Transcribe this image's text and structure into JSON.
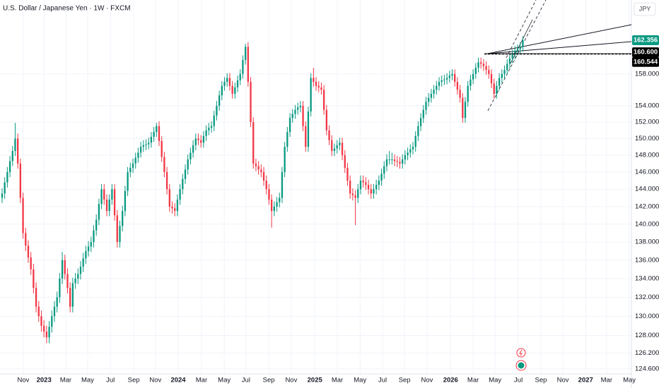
{
  "chart_data": {
    "type": "candlestick",
    "title": "U.S. Dollar / Japanese Yen · 1W · FXCM",
    "currency": "JPY",
    "up_color": "#089981",
    "down_color": "#f23645",
    "log_scale": true,
    "grid": true,
    "ylim": [
      124.1,
      167.7
    ],
    "yticks": [
      {
        "value": 124.6,
        "label": "124.600"
      },
      {
        "value": 126.2,
        "label": "126.200"
      },
      {
        "value": 128,
        "label": "128.000"
      },
      {
        "value": 130,
        "label": "130.000"
      },
      {
        "value": 132,
        "label": "132.000"
      },
      {
        "value": 134,
        "label": "134.000"
      },
      {
        "value": 136,
        "label": "136.000"
      },
      {
        "value": 138,
        "label": "138.000"
      },
      {
        "value": 140,
        "label": "140.000"
      },
      {
        "value": 142,
        "label": "142.000"
      },
      {
        "value": 144,
        "label": "144.000"
      },
      {
        "value": 146,
        "label": "146.000"
      },
      {
        "value": 148,
        "label": "148.000"
      },
      {
        "value": 150,
        "label": "150.000"
      },
      {
        "value": 152,
        "label": "152.000"
      },
      {
        "value": 154,
        "label": "154.000"
      },
      {
        "value": 158,
        "label": "158.000"
      }
    ],
    "xlim": [
      -0.8,
      240.5
    ],
    "xticks": [
      {
        "value": 8.1,
        "label": "Nov"
      },
      {
        "value": 16,
        "label": "2023"
      },
      {
        "value": 24.3,
        "label": "Mar"
      },
      {
        "value": 32.7,
        "label": "May"
      },
      {
        "value": 41.4,
        "label": "Jul"
      },
      {
        "value": 50.3,
        "label": "Sep"
      },
      {
        "value": 58.6,
        "label": "Nov"
      },
      {
        "value": 67.3,
        "label": "2024"
      },
      {
        "value": 76.2,
        "label": "Mar"
      },
      {
        "value": 84.9,
        "label": "May"
      },
      {
        "value": 93.2,
        "label": "Jul"
      },
      {
        "value": 101.9,
        "label": "Sep"
      },
      {
        "value": 110.5,
        "label": "Nov"
      },
      {
        "value": 119.5,
        "label": "2025"
      },
      {
        "value": 128.1,
        "label": "Mar"
      },
      {
        "value": 136.8,
        "label": "May"
      },
      {
        "value": 145.4,
        "label": "Jul"
      },
      {
        "value": 153.8,
        "label": "Sep"
      },
      {
        "value": 162.4,
        "label": "Nov"
      },
      {
        "value": 171.4,
        "label": "2026"
      },
      {
        "value": 180,
        "label": "Mar"
      },
      {
        "value": 188.4,
        "label": "May"
      },
      {
        "value": 197.3,
        "label": "Jul"
      },
      {
        "value": 205.9,
        "label": "Sep"
      },
      {
        "value": 214.3,
        "label": "Nov"
      },
      {
        "value": 223,
        "label": "2027"
      },
      {
        "value": 231,
        "label": "Mar"
      },
      {
        "value": 239.7,
        "label": "May"
      }
    ],
    "price_labels": [
      {
        "value": 162.356,
        "label": "162.356",
        "color": "#089981"
      },
      {
        "value": 160.6,
        "label": "160.600",
        "color": "#000000"
      },
      {
        "value": 160.544,
        "label": "160.544",
        "color": "#000000"
      }
    ],
    "ohlc": [
      [
        143.0,
        144.1,
        142.4,
        143.5
      ],
      [
        143.5,
        145.4,
        142.9,
        144.8
      ],
      [
        144.8,
        146.6,
        144.2,
        146.0
      ],
      [
        146.0,
        147.9,
        145.4,
        147.3
      ],
      [
        147.3,
        149.1,
        146.7,
        148.5
      ],
      [
        148.5,
        151.9,
        147.9,
        150.0
      ],
      [
        150.0,
        150.6,
        146.4,
        147.0
      ],
      [
        147.0,
        147.6,
        142.4,
        143.0
      ],
      [
        143.0,
        143.6,
        138.4,
        139.0
      ],
      [
        139.0,
        139.6,
        137.0,
        137.6
      ],
      [
        137.6,
        138.2,
        135.7,
        136.3
      ],
      [
        136.3,
        136.9,
        134.4,
        135.0
      ],
      [
        135.0,
        135.6,
        132.4,
        133.0
      ],
      [
        133.0,
        133.6,
        130.4,
        131.0
      ],
      [
        131.0,
        131.6,
        129.4,
        130.0
      ],
      [
        130.0,
        130.6,
        128.4,
        129.0
      ],
      [
        129.0,
        129.6,
        127.8,
        128.4
      ],
      [
        128.4,
        129.0,
        127.2,
        127.8
      ],
      [
        127.8,
        129.5,
        127.2,
        128.9
      ],
      [
        128.9,
        130.6,
        128.3,
        130.0
      ],
      [
        130.0,
        131.6,
        129.4,
        131.0
      ],
      [
        131.0,
        132.6,
        130.4,
        132.0
      ],
      [
        132.0,
        134.6,
        131.4,
        134.0
      ],
      [
        134.0,
        136.9,
        133.4,
        136.0
      ],
      [
        136.0,
        136.6,
        133.9,
        134.5
      ],
      [
        134.5,
        135.1,
        132.4,
        133.0
      ],
      [
        133.0,
        133.6,
        130.4,
        131.0
      ],
      [
        131.0,
        134.1,
        130.4,
        133.5
      ],
      [
        133.5,
        134.6,
        132.9,
        134.0
      ],
      [
        134.0,
        135.1,
        133.4,
        134.5
      ],
      [
        134.5,
        135.9,
        133.9,
        135.3
      ],
      [
        135.3,
        136.8,
        134.7,
        136.2
      ],
      [
        136.2,
        137.6,
        135.6,
        137.0
      ],
      [
        137.0,
        138.1,
        136.4,
        137.5
      ],
      [
        137.5,
        138.6,
        136.9,
        138.0
      ],
      [
        138.0,
        139.9,
        137.4,
        139.3
      ],
      [
        139.3,
        141.1,
        138.7,
        140.5
      ],
      [
        140.5,
        142.9,
        139.9,
        142.3
      ],
      [
        142.3,
        144.6,
        141.7,
        144.0
      ],
      [
        144.0,
        144.6,
        142.2,
        142.8
      ],
      [
        142.8,
        143.4,
        140.9,
        141.5
      ],
      [
        141.5,
        143.4,
        140.9,
        142.8
      ],
      [
        142.8,
        144.6,
        142.2,
        144.0
      ],
      [
        144.0,
        144.6,
        140.4,
        141.0
      ],
      [
        141.0,
        141.6,
        137.4,
        138.0
      ],
      [
        138.0,
        140.4,
        137.4,
        139.8
      ],
      [
        139.8,
        142.1,
        139.2,
        141.5
      ],
      [
        141.5,
        144.4,
        140.9,
        143.8
      ],
      [
        143.8,
        146.6,
        143.2,
        146.0
      ],
      [
        146.0,
        147.1,
        145.4,
        146.5
      ],
      [
        146.5,
        147.6,
        145.9,
        147.0
      ],
      [
        147.0,
        148.3,
        146.4,
        147.7
      ],
      [
        147.7,
        148.9,
        147.1,
        148.3
      ],
      [
        148.3,
        149.6,
        147.7,
        149.0
      ],
      [
        149.0,
        149.8,
        148.4,
        149.2
      ],
      [
        149.2,
        149.9,
        148.6,
        149.3
      ],
      [
        149.3,
        150.1,
        148.7,
        149.5
      ],
      [
        149.5,
        150.8,
        148.9,
        150.2
      ],
      [
        150.2,
        151.4,
        149.6,
        150.8
      ],
      [
        150.8,
        151.9,
        150.2,
        151.5
      ],
      [
        151.5,
        152.1,
        149.1,
        149.7
      ],
      [
        149.7,
        150.3,
        147.2,
        147.8
      ],
      [
        147.8,
        148.4,
        145.4,
        146.0
      ],
      [
        146.0,
        146.6,
        143.4,
        144.0
      ],
      [
        144.0,
        144.6,
        141.4,
        142.0
      ],
      [
        142.0,
        142.6,
        141.2,
        141.8
      ],
      [
        141.8,
        142.4,
        140.9,
        141.5
      ],
      [
        141.5,
        143.4,
        140.9,
        142.8
      ],
      [
        142.8,
        144.6,
        142.2,
        144.0
      ],
      [
        144.0,
        145.8,
        143.4,
        145.2
      ],
      [
        145.2,
        146.9,
        144.6,
        146.3
      ],
      [
        146.3,
        148.1,
        145.7,
        147.5
      ],
      [
        147.5,
        148.9,
        146.9,
        148.3
      ],
      [
        148.3,
        149.8,
        147.7,
        149.2
      ],
      [
        149.2,
        150.6,
        148.6,
        150.0
      ],
      [
        150.0,
        150.6,
        149.2,
        149.8
      ],
      [
        149.8,
        150.4,
        148.9,
        149.5
      ],
      [
        149.5,
        150.9,
        148.9,
        150.3
      ],
      [
        150.3,
        151.6,
        149.7,
        151.0
      ],
      [
        151.0,
        151.9,
        150.4,
        151.3
      ],
      [
        151.3,
        152.1,
        150.7,
        151.5
      ],
      [
        151.5,
        153.4,
        150.9,
        152.8
      ],
      [
        152.8,
        154.6,
        152.2,
        154.0
      ],
      [
        154.0,
        155.9,
        153.4,
        155.3
      ],
      [
        155.3,
        157.1,
        154.7,
        156.5
      ],
      [
        156.5,
        157.6,
        155.9,
        157.0
      ],
      [
        157.0,
        158.1,
        156.4,
        157.5
      ],
      [
        157.5,
        158.1,
        155.9,
        156.5
      ],
      [
        156.5,
        157.1,
        154.9,
        155.5
      ],
      [
        155.5,
        156.9,
        154.9,
        156.3
      ],
      [
        156.3,
        157.8,
        155.7,
        157.2
      ],
      [
        157.2,
        158.6,
        156.6,
        158.0
      ],
      [
        158.0,
        160.4,
        157.4,
        159.8
      ],
      [
        159.8,
        161.9,
        159.2,
        161.5
      ],
      [
        161.5,
        162.1,
        156.4,
        157.0
      ],
      [
        157.0,
        157.6,
        151.4,
        152.0
      ],
      [
        152.0,
        152.6,
        146.4,
        147.0
      ],
      [
        147.0,
        147.6,
        146.1,
        146.7
      ],
      [
        146.7,
        147.3,
        145.7,
        146.3
      ],
      [
        146.3,
        146.9,
        145.4,
        146.0
      ],
      [
        146.0,
        146.6,
        144.4,
        145.0
      ],
      [
        145.0,
        145.6,
        143.4,
        144.0
      ],
      [
        144.0,
        144.6,
        142.2,
        142.8
      ],
      [
        142.8,
        143.4,
        139.6,
        141.5
      ],
      [
        141.5,
        142.6,
        140.9,
        142.0
      ],
      [
        142.0,
        143.1,
        141.4,
        142.5
      ],
      [
        142.5,
        143.6,
        141.9,
        143.0
      ],
      [
        143.0,
        146.6,
        142.4,
        146.0
      ],
      [
        146.0,
        149.6,
        145.4,
        149.0
      ],
      [
        149.0,
        151.4,
        148.4,
        150.8
      ],
      [
        150.8,
        153.1,
        150.2,
        152.5
      ],
      [
        152.5,
        153.6,
        151.9,
        153.0
      ],
      [
        153.0,
        154.1,
        152.4,
        153.5
      ],
      [
        153.5,
        154.4,
        152.9,
        153.8
      ],
      [
        153.8,
        154.6,
        153.2,
        154.0
      ],
      [
        154.0,
        154.6,
        150.9,
        151.5
      ],
      [
        151.5,
        152.1,
        148.4,
        149.0
      ],
      [
        149.0,
        153.9,
        148.4,
        153.3
      ],
      [
        153.3,
        158.1,
        152.7,
        157.5
      ],
      [
        157.5,
        158.8,
        156.4,
        157.0
      ],
      [
        157.0,
        157.6,
        155.9,
        156.5
      ],
      [
        156.5,
        157.1,
        155.7,
        156.3
      ],
      [
        156.3,
        156.9,
        155.4,
        156.0
      ],
      [
        156.0,
        156.6,
        152.9,
        153.5
      ],
      [
        153.5,
        154.1,
        150.4,
        151.0
      ],
      [
        151.0,
        151.6,
        149.2,
        149.8
      ],
      [
        149.8,
        150.4,
        147.9,
        148.5
      ],
      [
        148.5,
        149.4,
        147.9,
        148.8
      ],
      [
        148.8,
        149.8,
        148.2,
        149.2
      ],
      [
        149.2,
        150.1,
        148.6,
        149.5
      ],
      [
        149.5,
        150.1,
        147.4,
        148.0
      ],
      [
        148.0,
        148.6,
        145.9,
        146.5
      ],
      [
        146.5,
        147.1,
        144.4,
        145.0
      ],
      [
        145.0,
        145.6,
        142.9,
        143.5
      ],
      [
        143.5,
        144.1,
        142.7,
        143.3
      ],
      [
        143.3,
        143.9,
        139.9,
        143.0
      ],
      [
        143.0,
        144.6,
        142.4,
        144.0
      ],
      [
        144.0,
        145.6,
        143.4,
        145.0
      ],
      [
        145.0,
        145.6,
        144.2,
        144.8
      ],
      [
        144.8,
        145.4,
        143.9,
        144.5
      ],
      [
        144.5,
        145.1,
        143.4,
        144.0
      ],
      [
        144.0,
        144.6,
        142.9,
        143.5
      ],
      [
        143.5,
        144.6,
        142.9,
        144.0
      ],
      [
        144.0,
        145.1,
        143.4,
        144.5
      ],
      [
        144.5,
        145.6,
        143.9,
        145.0
      ],
      [
        145.0,
        146.4,
        144.4,
        145.8
      ],
      [
        145.8,
        147.3,
        145.2,
        146.7
      ],
      [
        146.7,
        148.1,
        146.1,
        147.5
      ],
      [
        147.5,
        148.5,
        146.9,
        147.5
      ],
      [
        147.5,
        148.3,
        146.9,
        147.5
      ],
      [
        147.5,
        148.1,
        146.7,
        147.3
      ],
      [
        147.3,
        147.9,
        146.6,
        147.2
      ],
      [
        147.2,
        147.8,
        146.4,
        147.0
      ],
      [
        147.0,
        148.1,
        146.4,
        147.5
      ],
      [
        147.5,
        148.6,
        146.9,
        148.0
      ],
      [
        148.0,
        148.9,
        147.4,
        148.3
      ],
      [
        148.3,
        149.3,
        147.7,
        148.7
      ],
      [
        148.7,
        149.6,
        148.1,
        149.0
      ],
      [
        149.0,
        150.9,
        148.4,
        150.3
      ],
      [
        150.3,
        152.1,
        149.7,
        151.5
      ],
      [
        151.5,
        153.1,
        150.9,
        152.5
      ],
      [
        152.5,
        154.1,
        151.9,
        153.5
      ],
      [
        153.5,
        155.1,
        152.9,
        154.5
      ],
      [
        154.5,
        155.6,
        153.9,
        155.0
      ],
      [
        155.0,
        156.1,
        154.4,
        155.5
      ],
      [
        155.5,
        156.6,
        154.9,
        156.0
      ],
      [
        156.0,
        157.1,
        155.4,
        156.5
      ],
      [
        156.5,
        157.6,
        155.9,
        157.0
      ],
      [
        157.0,
        157.8,
        156.4,
        157.2
      ],
      [
        157.2,
        157.9,
        156.6,
        157.3
      ],
      [
        157.3,
        158.1,
        156.7,
        157.5
      ],
      [
        157.5,
        158.4,
        156.9,
        157.8
      ],
      [
        157.8,
        158.6,
        157.2,
        158.0
      ],
      [
        158.0,
        158.6,
        156.4,
        157.0
      ],
      [
        157.0,
        157.6,
        155.4,
        156.0
      ],
      [
        156.0,
        156.6,
        154.4,
        155.0
      ],
      [
        155.0,
        155.6,
        151.9,
        152.5
      ],
      [
        152.5,
        155.1,
        151.9,
        154.5
      ],
      [
        154.5,
        157.1,
        153.9,
        156.5
      ],
      [
        156.5,
        157.9,
        155.9,
        157.3
      ],
      [
        157.3,
        158.6,
        156.7,
        158.0
      ],
      [
        158.0,
        159.4,
        157.4,
        158.8
      ],
      [
        158.8,
        160.1,
        158.2,
        159.5
      ],
      [
        159.5,
        160.1,
        158.7,
        159.3
      ],
      [
        159.3,
        159.9,
        158.4,
        159.0
      ],
      [
        159.0,
        159.6,
        157.9,
        158.5
      ],
      [
        158.5,
        159.1,
        157.4,
        158.0
      ],
      [
        158.0,
        158.6,
        156.2,
        156.8
      ],
      [
        156.8,
        157.4,
        154.9,
        155.5
      ],
      [
        155.5,
        157.1,
        154.9,
        156.5
      ],
      [
        156.5,
        158.1,
        155.9,
        157.5
      ],
      [
        157.5,
        158.6,
        156.9,
        158.0
      ],
      [
        158.0,
        159.1,
        157.4,
        158.5
      ],
      [
        158.5,
        159.9,
        157.9,
        159.3
      ],
      [
        159.3,
        160.6,
        158.7,
        160.0
      ],
      [
        160.0,
        161.1,
        159.4,
        160.5
      ],
      [
        160.5,
        161.6,
        159.9,
        161.0
      ],
      [
        161.0,
        161.8,
        160.4,
        161.2
      ],
      [
        161.2,
        162.1,
        160.6,
        161.5
      ],
      [
        161.5,
        162.9,
        160.9,
        162.356
      ]
    ]
  }
}
